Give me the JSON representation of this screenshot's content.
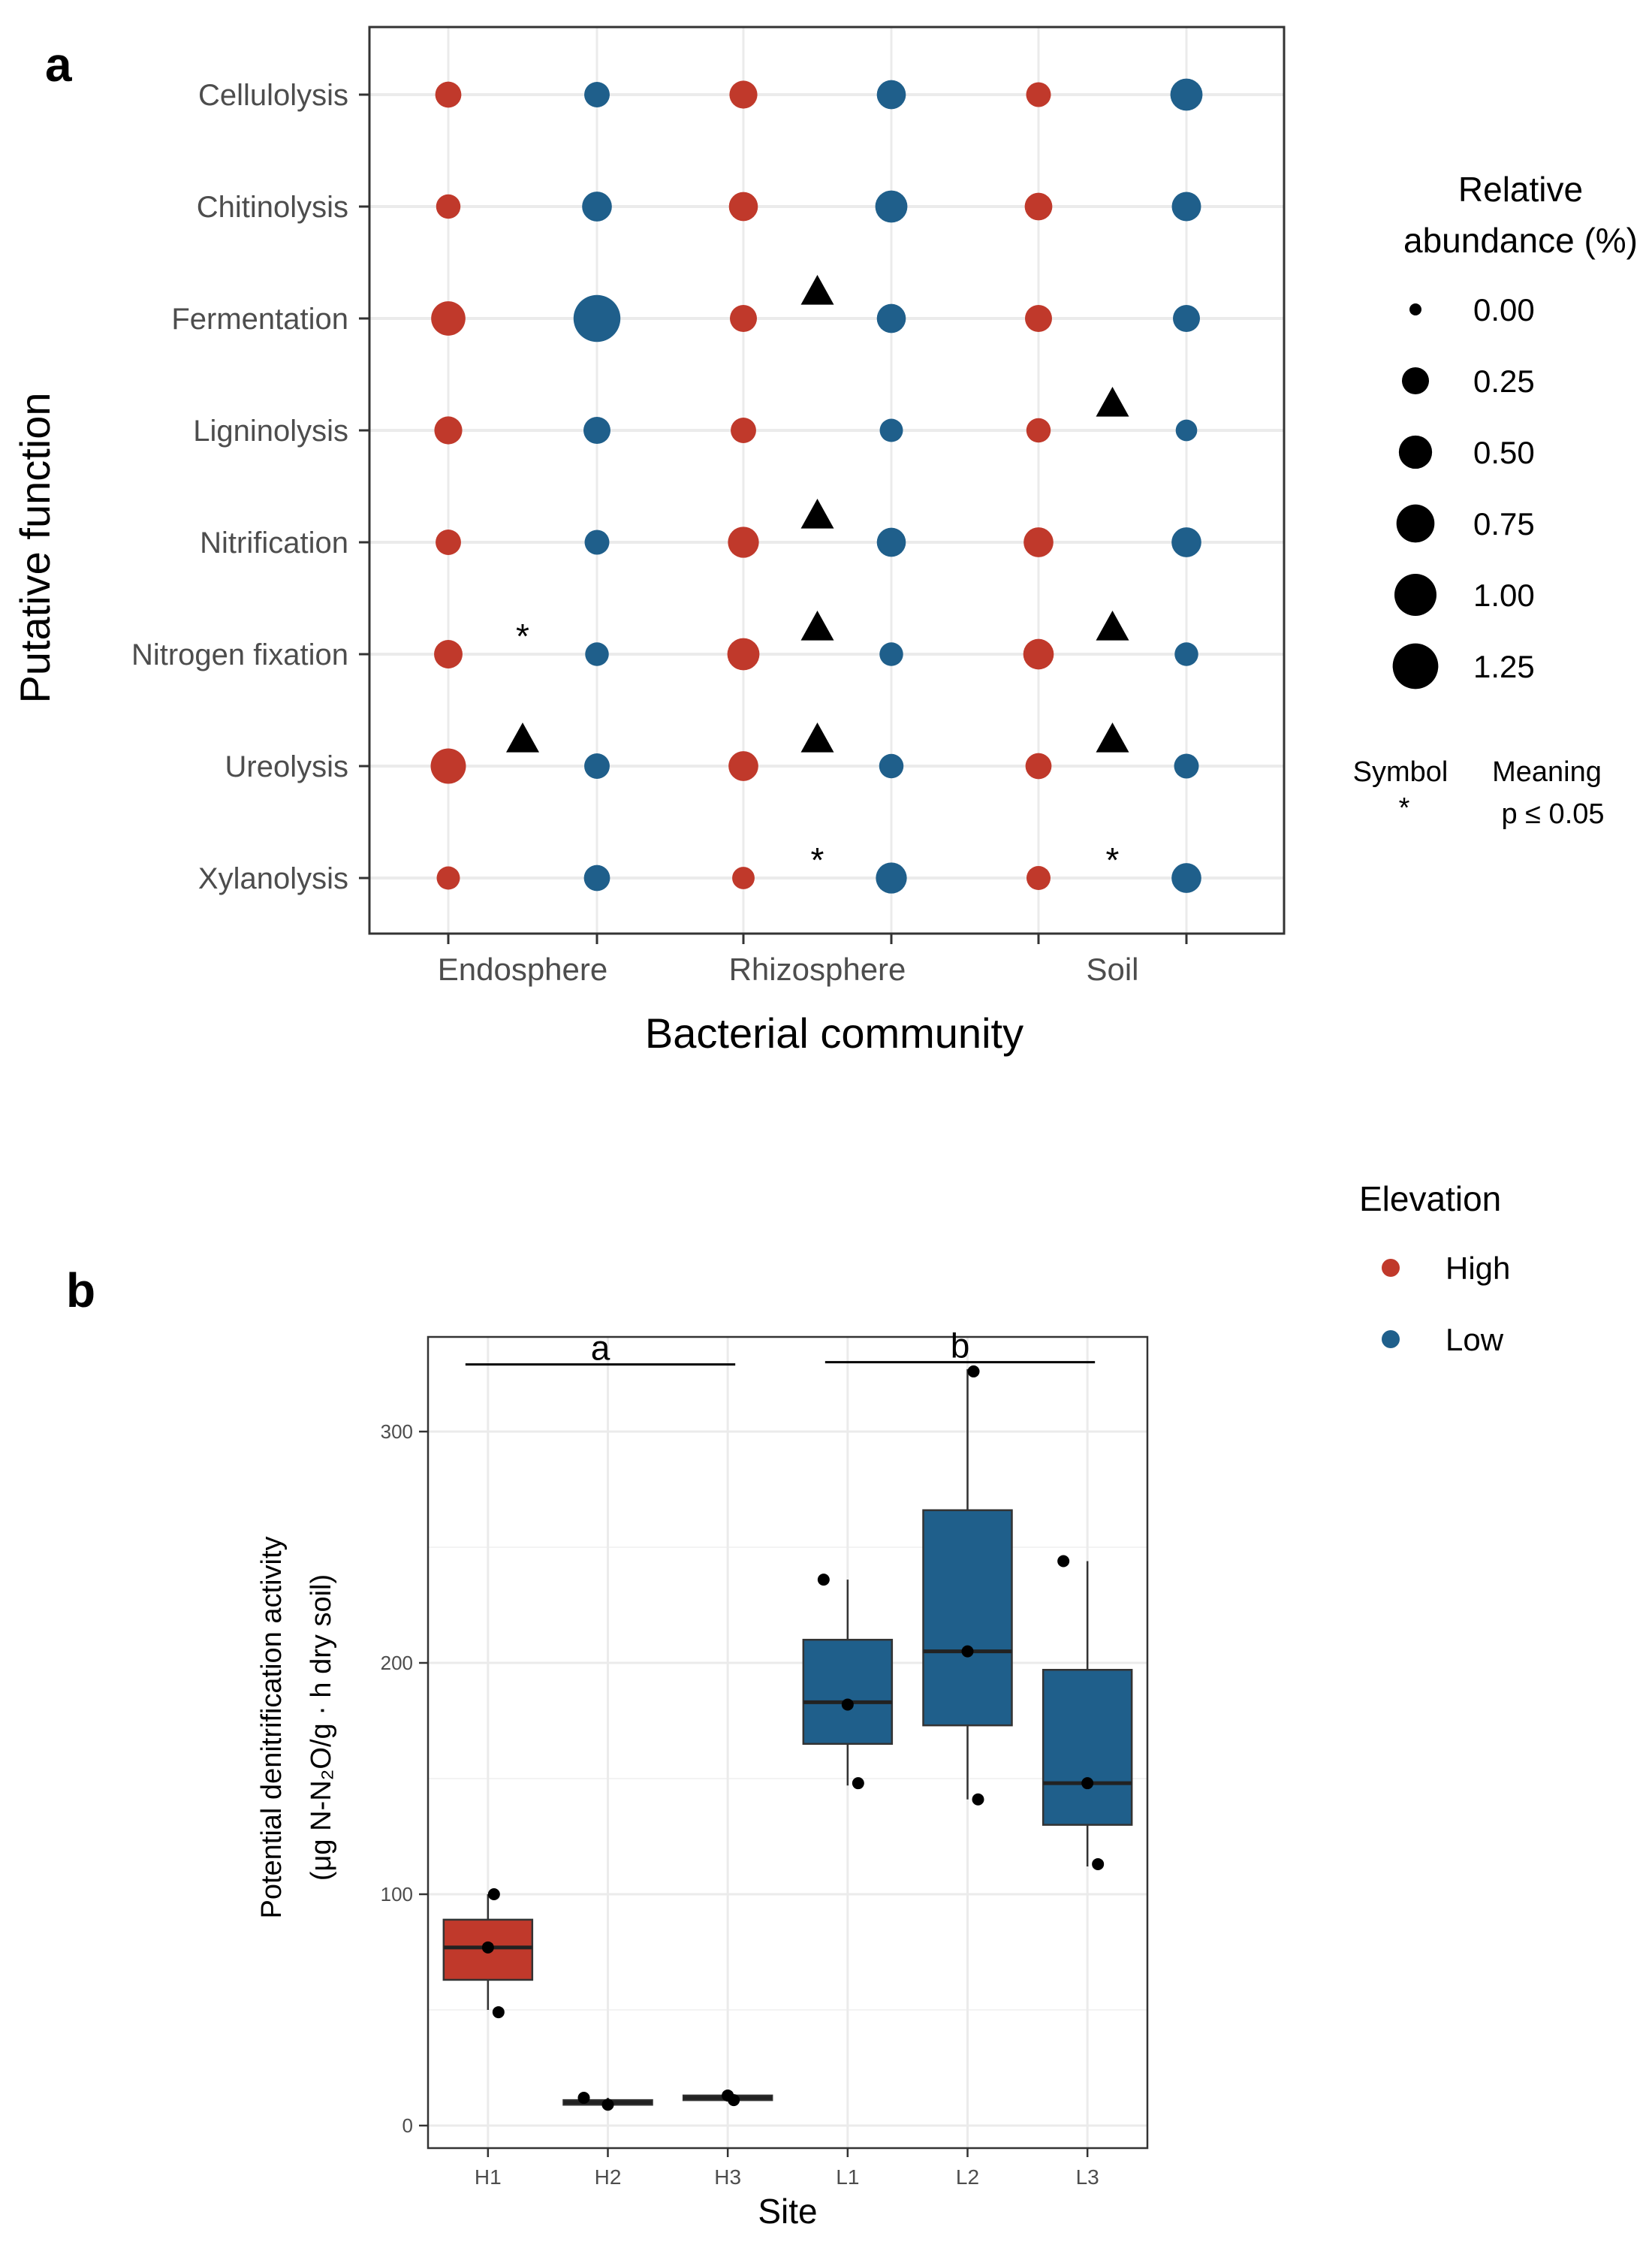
{
  "chart_data": [
    {
      "type": "scatter",
      "panel_label": "a",
      "xlabel": "Bacterial community",
      "ylabel": "Putative function",
      "x_ticks": [
        "Endosphere",
        "Rhizosphere",
        "Soil"
      ],
      "y_categories": [
        "Cellulolysis",
        "Chitinolysis",
        "Fermentation",
        "Ligninolysis",
        "Nitrification",
        "Nitrogen fixation",
        "Ureolysis",
        "Xylanolysis"
      ],
      "size_legend": {
        "title": [
          "Relative",
          "abundance (%)"
        ],
        "values": [
          0.0,
          0.25,
          0.5,
          0.75,
          1.0,
          1.25
        ]
      },
      "color_legend": {
        "title": "Elevation",
        "items": [
          {
            "label": "High",
            "color": "#c0392b"
          },
          {
            "label": "Low",
            "color": "#1f5f8b"
          }
        ]
      },
      "symbol_legend": {
        "header": [
          "Symbol",
          "Meaning"
        ],
        "rows": [
          [
            "*",
            "p ≤ 0.05"
          ]
        ]
      },
      "points": [
        {
          "community": "Endosphere",
          "elevation": "High",
          "values": [
            0.22,
            0.17,
            0.55,
            0.28,
            0.2,
            0.3,
            0.6,
            0.14
          ]
        },
        {
          "community": "Endosphere",
          "elevation": "Low",
          "values": [
            0.2,
            0.35,
            1.35,
            0.25,
            0.18,
            0.15,
            0.2,
            0.22
          ]
        },
        {
          "community": "Rhizosphere",
          "elevation": "High",
          "values": [
            0.28,
            0.32,
            0.25,
            0.2,
            0.4,
            0.45,
            0.35,
            0.12
          ]
        },
        {
          "community": "Rhizosphere",
          "elevation": "Low",
          "values": [
            0.32,
            0.45,
            0.32,
            0.14,
            0.32,
            0.15,
            0.17,
            0.4
          ]
        },
        {
          "community": "Soil",
          "elevation": "High",
          "values": [
            0.18,
            0.27,
            0.25,
            0.17,
            0.35,
            0.38,
            0.22,
            0.16
          ]
        },
        {
          "community": "Soil",
          "elevation": "Low",
          "values": [
            0.45,
            0.33,
            0.25,
            0.1,
            0.35,
            0.15,
            0.18,
            0.35
          ]
        }
      ],
      "markers": [
        {
          "community": "Endosphere",
          "function": "Nitrogen fixation",
          "symbol": "*"
        },
        {
          "community": "Endosphere",
          "function": "Ureolysis",
          "symbol": "triangle"
        },
        {
          "community": "Rhizosphere",
          "function": "Fermentation",
          "symbol": "triangle"
        },
        {
          "community": "Rhizosphere",
          "function": "Nitrification",
          "symbol": "triangle"
        },
        {
          "community": "Rhizosphere",
          "function": "Nitrogen fixation",
          "symbol": "triangle"
        },
        {
          "community": "Rhizosphere",
          "function": "Ureolysis",
          "symbol": "triangle"
        },
        {
          "community": "Rhizosphere",
          "function": "Xylanolysis",
          "symbol": "*"
        },
        {
          "community": "Soil",
          "function": "Ligninolysis",
          "symbol": "triangle"
        },
        {
          "community": "Soil",
          "function": "Nitrogen fixation",
          "symbol": "triangle"
        },
        {
          "community": "Soil",
          "function": "Ureolysis",
          "symbol": "triangle"
        },
        {
          "community": "Soil",
          "function": "Xylanolysis",
          "symbol": "*"
        }
      ]
    },
    {
      "type": "box",
      "panel_label": "b",
      "xlabel": "Site",
      "ylabel": [
        "Potential denitrification activity",
        "(μg N-N₂O/g · h dry soil)"
      ],
      "categories": [
        "H1",
        "H2",
        "H3",
        "L1",
        "L2",
        "L3"
      ],
      "ylim": [
        -5,
        345
      ],
      "yticks": [
        0,
        100,
        200,
        300
      ],
      "boxes": [
        {
          "site": "H1",
          "elevation": "High",
          "min": 50,
          "q1": 63,
          "median": 77,
          "q3": 89,
          "max": 100,
          "points": [
            100,
            77,
            49
          ]
        },
        {
          "site": "H2",
          "elevation": "High",
          "min": 9,
          "q1": 9,
          "median": 10,
          "q3": 11,
          "max": 12,
          "points": [
            12,
            9
          ]
        },
        {
          "site": "H3",
          "elevation": "High",
          "min": 11,
          "q1": 11,
          "median": 12,
          "q3": 13,
          "max": 13,
          "points": [
            11,
            13
          ]
        },
        {
          "site": "L1",
          "elevation": "Low",
          "min": 147,
          "q1": 165,
          "median": 183,
          "q3": 210,
          "max": 236,
          "points": [
            236,
            182,
            148
          ]
        },
        {
          "site": "L2",
          "elevation": "Low",
          "min": 141,
          "q1": 173,
          "median": 205,
          "q3": 266,
          "max": 327,
          "points": [
            326,
            205,
            141
          ]
        },
        {
          "site": "L3",
          "elevation": "Low",
          "min": 112,
          "q1": 130,
          "median": 148,
          "q3": 197,
          "max": 244,
          "points": [
            244,
            148,
            113
          ]
        }
      ],
      "brackets": [
        {
          "label": "a",
          "from": "H1",
          "to": "H3",
          "y": 329
        },
        {
          "label": "b",
          "from": "L1",
          "to": "L3",
          "y": 330
        }
      ]
    }
  ],
  "colors": {
    "high": "#c0392b",
    "low": "#1f5f8b",
    "grid": "#ebebeb",
    "axis": "#333333"
  }
}
